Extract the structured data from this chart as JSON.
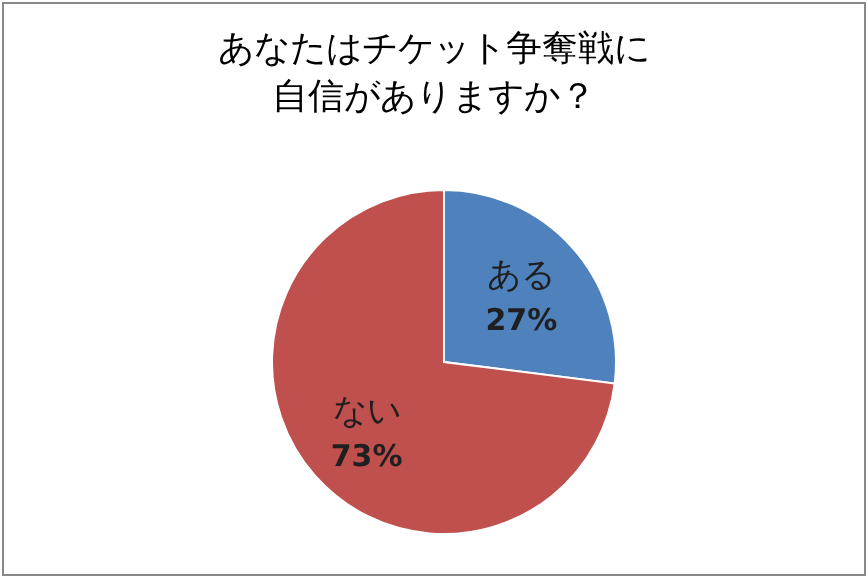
{
  "chart_data": {
    "type": "pie",
    "title": "あなたはチケット争奪戦に自信がありますか？",
    "categories": [
      "ある",
      "ない"
    ],
    "values": [
      27,
      73
    ],
    "colors": [
      "#4f81bd",
      "#c0504d"
    ],
    "value_labels": [
      "27%",
      "73%"
    ],
    "legend": false
  }
}
